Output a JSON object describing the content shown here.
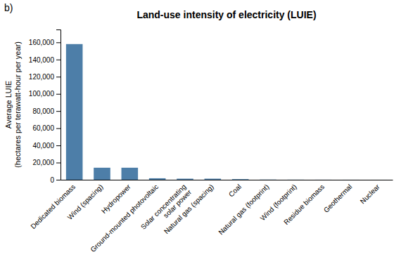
{
  "chart_data": {
    "type": "bar",
    "title": "Land-use intensity of electricity (LUIE)",
    "annotations": [
      "b)"
    ],
    "ylabel": "Average LUIE\n(hectares per terawatt-hour per year)",
    "categories": [
      "Dedicated biomass",
      "Wind (spacing)",
      "Hydropower",
      "Ground-mounted photovoltaic",
      "Solar concentrating\nsolar power",
      "Natural gas (spacing)",
      "Coal",
      "Natural gas (footprint)",
      "Wind (footprint)",
      "Residue biomass",
      "Geothermal",
      "Nuclear"
    ],
    "values": [
      158000,
      14000,
      14000,
      1700,
      1200,
      1200,
      700,
      200,
      100,
      50,
      30,
      10
    ],
    "color": "#4d7ea8",
    "ylim": [
      0,
      175000
    ],
    "yticks": [
      0,
      {
        "value": 20000,
        "label": "20,000"
      },
      {
        "value": 40000,
        "label": "40,000"
      },
      {
        "value": 60000,
        "label": "60,000"
      },
      {
        "value": 80000,
        "label": "80,000"
      },
      {
        "value": 100000,
        "label": "100,000"
      },
      {
        "value": 120000,
        "label": "120,000"
      },
      {
        "value": 140000,
        "label": "140,000"
      },
      {
        "value": 160000,
        "label": "160,000"
      }
    ],
    "grid": false
  }
}
